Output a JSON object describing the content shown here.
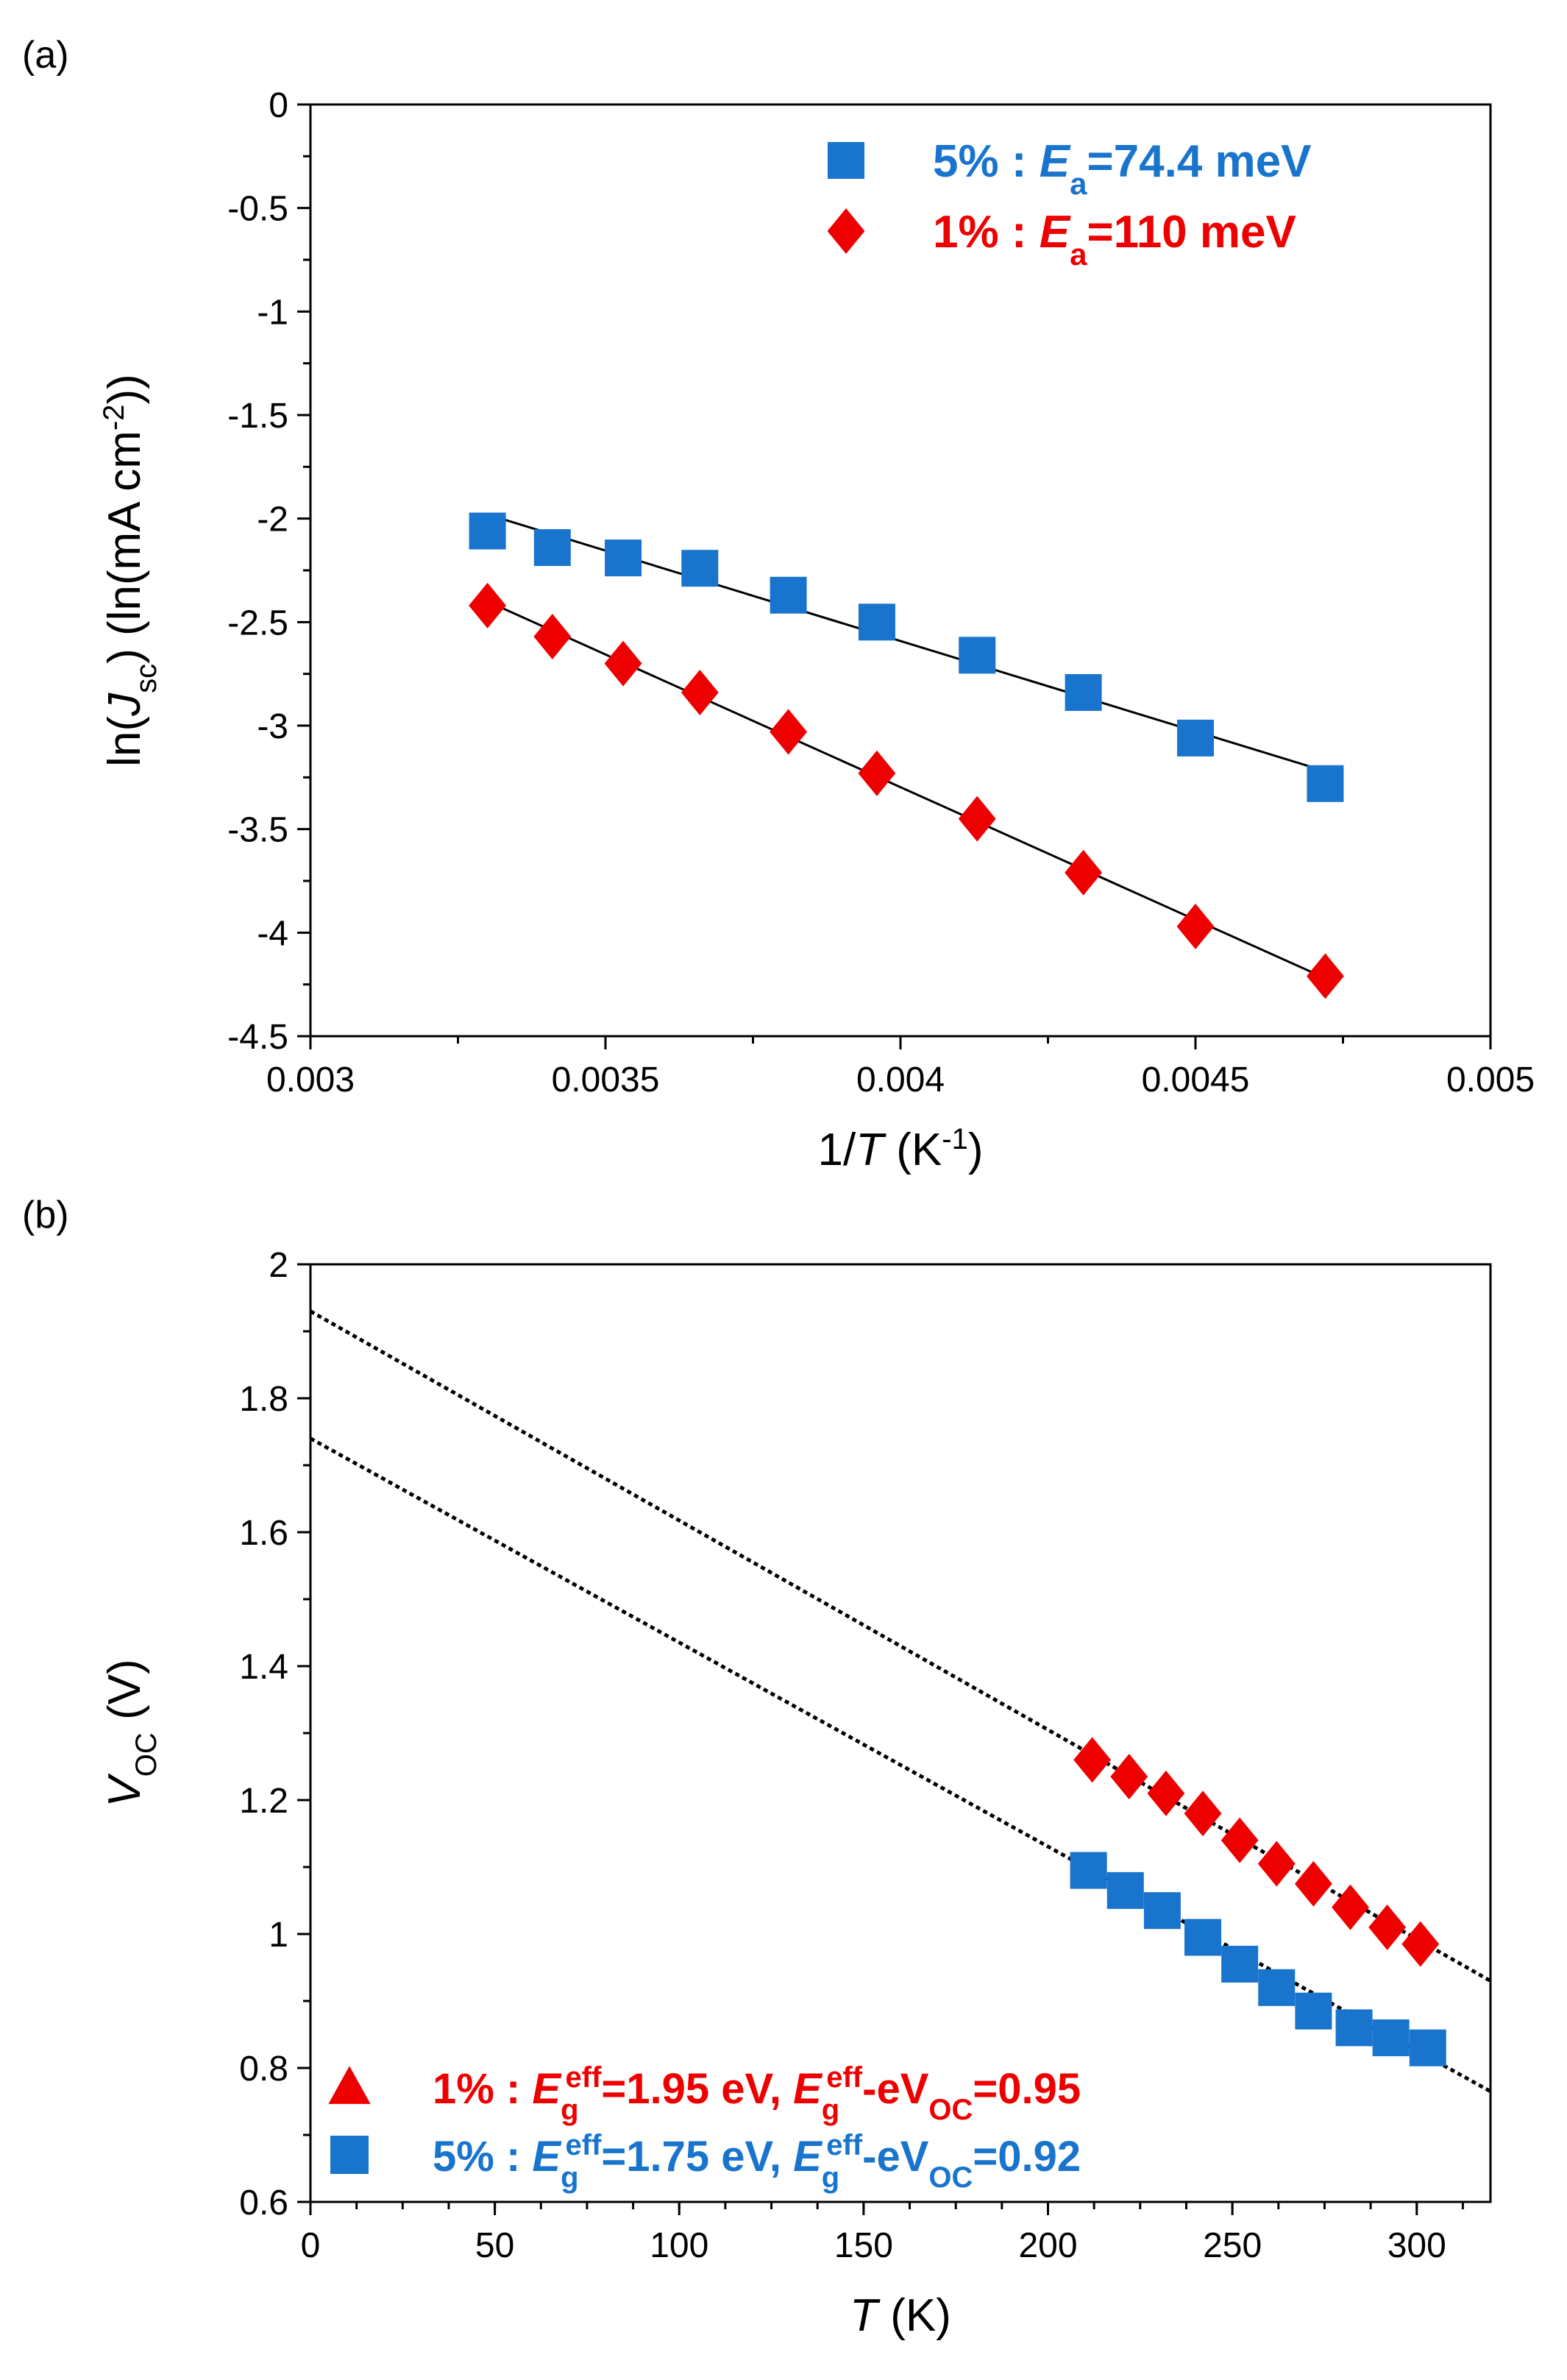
{
  "chart_data": [
    {
      "panel_label": "(a)",
      "type": "scatter",
      "xlabel": {
        "pre": "1/",
        "var": "T",
        "post": " (K",
        "sup": "-1",
        "close": ")"
      },
      "ylabel": {
        "pre": "ln(",
        "var": "J",
        "sub": "sc",
        "mid": ") (ln(mA cm",
        "sup": "-2",
        "close": "))"
      },
      "xlim": [
        0.003,
        0.005
      ],
      "ylim": [
        -4.5,
        0
      ],
      "xticks": [
        "0.003",
        "0.0035",
        "0.004",
        "0.0045",
        "0.005"
      ],
      "yticks": [
        "0",
        "-0.5",
        "-1",
        "-1.5",
        "-2",
        "-2.5",
        "-3",
        "-3.5",
        "-4",
        "-4.5"
      ],
      "series": [
        {
          "name": "5%",
          "color": "#1874cd",
          "marker": "square",
          "legend": {
            "pre": "5% : ",
            "var": "E",
            "sub": "a",
            "post": "=74.4 meV"
          },
          "x": [
            0.0033,
            0.00341,
            0.00353,
            0.00366,
            0.00381,
            0.00396,
            0.00413,
            0.00431,
            0.0045,
            0.00472
          ],
          "y": [
            -2.06,
            -2.14,
            -2.19,
            -2.24,
            -2.37,
            -2.5,
            -2.66,
            -2.84,
            -3.06,
            -3.28
          ],
          "fit": {
            "x": [
              0.0033,
              0.00472
            ],
            "y": [
              -1.98,
              -3.22
            ]
          }
        },
        {
          "name": "1%",
          "color": "#ee0000",
          "marker": "diamond",
          "legend": {
            "pre": "1% : ",
            "var": "E",
            "sub": "a",
            "post": "=110 meV"
          },
          "x": [
            0.0033,
            0.00341,
            0.00353,
            0.00366,
            0.00381,
            0.00396,
            0.00413,
            0.00431,
            0.0045,
            0.00472
          ],
          "y": [
            -2.42,
            -2.57,
            -2.7,
            -2.84,
            -3.03,
            -3.23,
            -3.45,
            -3.71,
            -3.97,
            -4.21
          ],
          "fit": {
            "x": [
              0.0033,
              0.00472
            ],
            "y": [
              -2.4,
              -4.22
            ]
          }
        }
      ]
    },
    {
      "panel_label": "(b)",
      "type": "scatter",
      "xlabel": {
        "var": "T",
        "post": " (K)"
      },
      "ylabel": {
        "var": "V",
        "sub": "OC",
        "post": " (V)"
      },
      "xlim": [
        0,
        320
      ],
      "ylim": [
        0.6,
        2
      ],
      "xticks": [
        "0",
        "50",
        "100",
        "150",
        "200",
        "250",
        "300"
      ],
      "yticks": [
        "2",
        "1.8",
        "1.6",
        "1.4",
        "1.2",
        "1",
        "0.8",
        "0.6"
      ],
      "series": [
        {
          "name": "1%",
          "color": "#ee0000",
          "marker": "diamond",
          "legend_marker": "triangle",
          "legend": {
            "pre": "1% : ",
            "var1": "E",
            "sub1": "g",
            "sup1": "eff",
            "mid": "=1.95 eV, ",
            "var2": "E",
            "sub2": "g",
            "sup2": "eff",
            "mid2": "-eV",
            "sub3": "OC",
            "post": "=0.95"
          },
          "x": [
            212,
            222,
            232,
            242,
            252,
            262,
            272,
            282,
            292,
            301
          ],
          "y": [
            1.26,
            1.235,
            1.21,
            1.18,
            1.14,
            1.105,
            1.075,
            1.04,
            1.01,
            0.985
          ],
          "fit": {
            "x": [
              0,
              320
            ],
            "y": [
              1.93,
              0.93
            ]
          }
        },
        {
          "name": "5%",
          "color": "#1874cd",
          "marker": "square",
          "legend_marker": "square",
          "legend": {
            "pre": "5% : ",
            "var1": "E",
            "sub1": "g",
            "sup1": "eff",
            "mid": "=1.75 eV, ",
            "var2": "E",
            "sub2": "g",
            "sup2": "eff",
            "mid2": "-eV",
            "sub3": "OC",
            "post": "=0.92"
          },
          "x": [
            211,
            221,
            231,
            242,
            252,
            262,
            272,
            283,
            293,
            303
          ],
          "y": [
            1.095,
            1.065,
            1.035,
            0.995,
            0.955,
            0.92,
            0.885,
            0.86,
            0.845,
            0.83
          ],
          "fit": {
            "x": [
              0,
              320
            ],
            "y": [
              1.74,
              0.765
            ]
          }
        }
      ]
    }
  ]
}
